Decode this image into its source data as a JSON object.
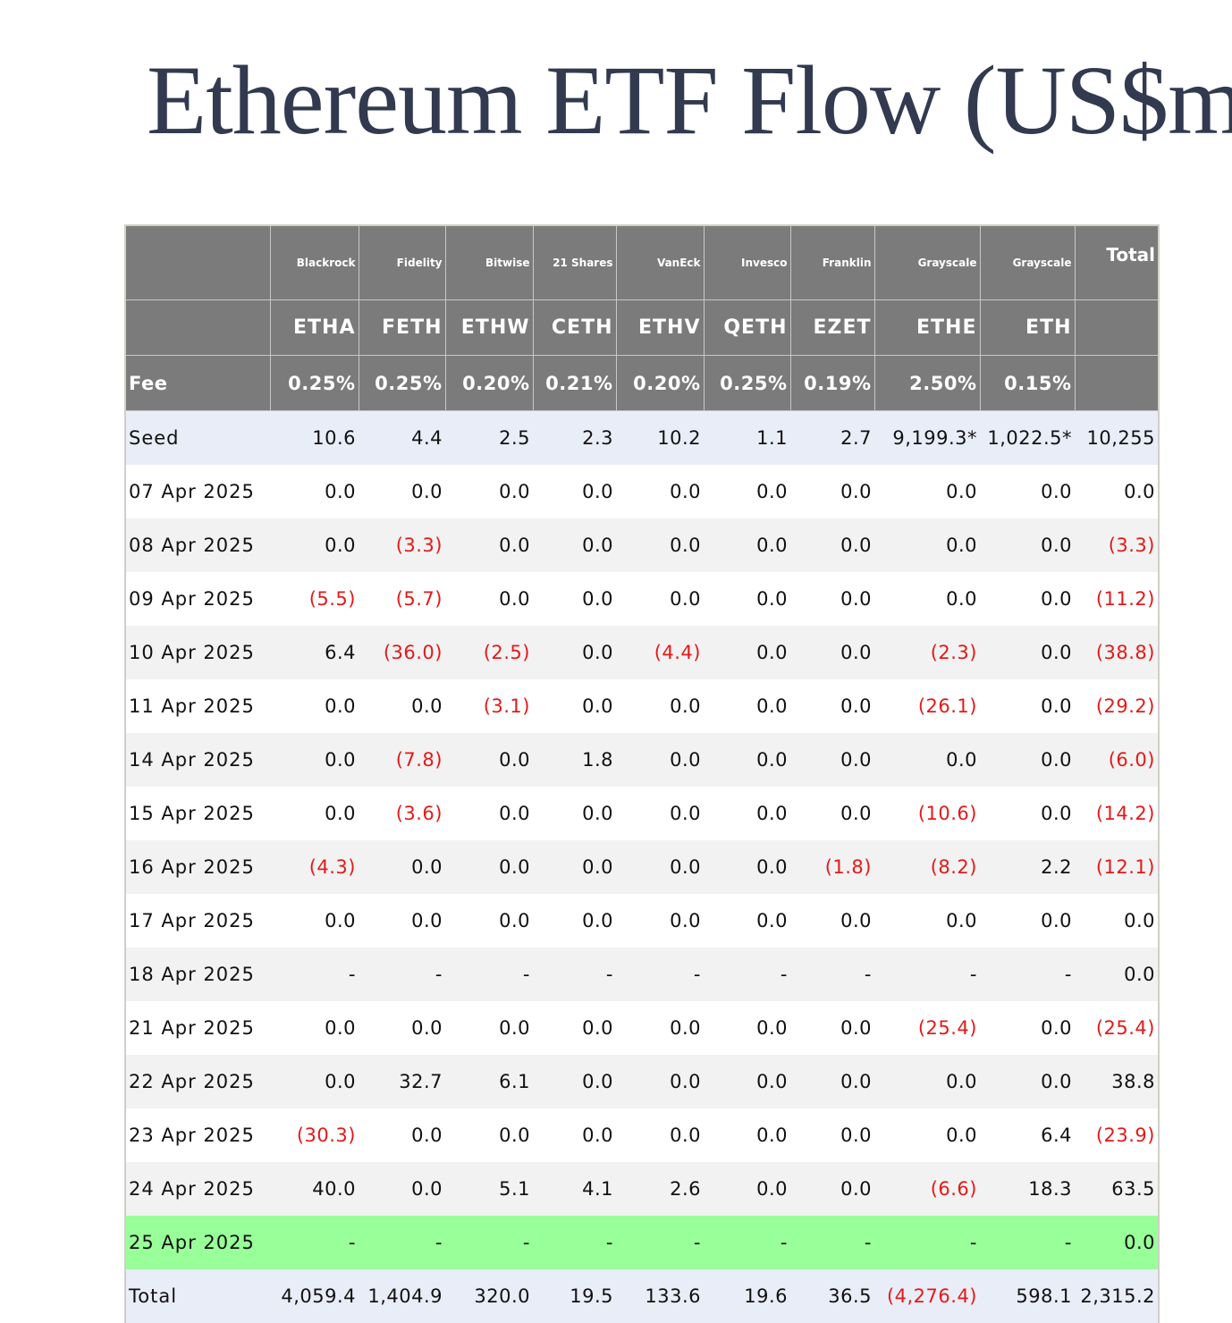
{
  "title": "Ethereum ETF Flow (US$m)",
  "header": {
    "issuers": [
      "Blackrock",
      "Fidelity",
      "Bitwise",
      "21 Shares",
      "VanEck",
      "Invesco",
      "Franklin",
      "Grayscale",
      "Grayscale"
    ],
    "total_label": "Total",
    "tickers": [
      "ETHA",
      "FETH",
      "ETHW",
      "CETH",
      "ETHV",
      "QETH",
      "EZET",
      "ETHE",
      "ETH"
    ],
    "fee_label": "Fee",
    "fees": [
      "0.25%",
      "0.25%",
      "0.20%",
      "0.21%",
      "0.20%",
      "0.25%",
      "0.19%",
      "2.50%",
      "0.15%"
    ]
  },
  "rows": [
    {
      "label": "Seed",
      "style": "seed",
      "values": [
        "10.6",
        "4.4",
        "2.5",
        "2.3",
        "10.2",
        "1.1",
        "2.7",
        "9,199.3*",
        "1,022.5*",
        "10,255"
      ]
    },
    {
      "label": "07 Apr 2025",
      "style": "plain",
      "values": [
        "0.0",
        "0.0",
        "0.0",
        "0.0",
        "0.0",
        "0.0",
        "0.0",
        "0.0",
        "0.0",
        "0.0"
      ]
    },
    {
      "label": "08 Apr 2025",
      "style": "alt",
      "values": [
        "0.0",
        "(3.3)",
        "0.0",
        "0.0",
        "0.0",
        "0.0",
        "0.0",
        "0.0",
        "0.0",
        "(3.3)"
      ]
    },
    {
      "label": "09 Apr 2025",
      "style": "plain",
      "values": [
        "(5.5)",
        "(5.7)",
        "0.0",
        "0.0",
        "0.0",
        "0.0",
        "0.0",
        "0.0",
        "0.0",
        "(11.2)"
      ]
    },
    {
      "label": "10 Apr 2025",
      "style": "alt",
      "values": [
        "6.4",
        "(36.0)",
        "(2.5)",
        "0.0",
        "(4.4)",
        "0.0",
        "0.0",
        "(2.3)",
        "0.0",
        "(38.8)"
      ]
    },
    {
      "label": "11 Apr 2025",
      "style": "plain",
      "values": [
        "0.0",
        "0.0",
        "(3.1)",
        "0.0",
        "0.0",
        "0.0",
        "0.0",
        "(26.1)",
        "0.0",
        "(29.2)"
      ]
    },
    {
      "label": "14 Apr 2025",
      "style": "alt",
      "values": [
        "0.0",
        "(7.8)",
        "0.0",
        "1.8",
        "0.0",
        "0.0",
        "0.0",
        "0.0",
        "0.0",
        "(6.0)"
      ]
    },
    {
      "label": "15 Apr 2025",
      "style": "plain",
      "values": [
        "0.0",
        "(3.6)",
        "0.0",
        "0.0",
        "0.0",
        "0.0",
        "0.0",
        "(10.6)",
        "0.0",
        "(14.2)"
      ]
    },
    {
      "label": "16 Apr 2025",
      "style": "alt",
      "values": [
        "(4.3)",
        "0.0",
        "0.0",
        "0.0",
        "0.0",
        "0.0",
        "(1.8)",
        "(8.2)",
        "2.2",
        "(12.1)"
      ]
    },
    {
      "label": "17 Apr 2025",
      "style": "plain",
      "values": [
        "0.0",
        "0.0",
        "0.0",
        "0.0",
        "0.0",
        "0.0",
        "0.0",
        "0.0",
        "0.0",
        "0.0"
      ]
    },
    {
      "label": "18 Apr 2025",
      "style": "alt",
      "values": [
        "-",
        "-",
        "-",
        "-",
        "-",
        "-",
        "-",
        "-",
        "-",
        "0.0"
      ]
    },
    {
      "label": "21 Apr 2025",
      "style": "plain",
      "values": [
        "0.0",
        "0.0",
        "0.0",
        "0.0",
        "0.0",
        "0.0",
        "0.0",
        "(25.4)",
        "0.0",
        "(25.4)"
      ]
    },
    {
      "label": "22 Apr 2025",
      "style": "alt",
      "values": [
        "0.0",
        "32.7",
        "6.1",
        "0.0",
        "0.0",
        "0.0",
        "0.0",
        "0.0",
        "0.0",
        "38.8"
      ]
    },
    {
      "label": "23 Apr 2025",
      "style": "plain",
      "values": [
        "(30.3)",
        "0.0",
        "0.0",
        "0.0",
        "0.0",
        "0.0",
        "0.0",
        "0.0",
        "6.4",
        "(23.9)"
      ]
    },
    {
      "label": "24 Apr 2025",
      "style": "alt",
      "values": [
        "40.0",
        "0.0",
        "5.1",
        "4.1",
        "2.6",
        "0.0",
        "0.0",
        "(6.6)",
        "18.3",
        "63.5"
      ]
    },
    {
      "label": "25 Apr 2025",
      "style": "highlight",
      "values": [
        "-",
        "-",
        "-",
        "-",
        "-",
        "-",
        "-",
        "-",
        "-",
        "0.0"
      ]
    },
    {
      "label": "Total",
      "style": "total",
      "values": [
        "4,059.4",
        "1,404.9",
        "320.0",
        "19.5",
        "133.6",
        "19.6",
        "36.5",
        "(4,276.4)",
        "598.1",
        "2,315.2"
      ]
    }
  ],
  "colors": {
    "title": "#323a50",
    "header_bg": "#7b7b7b",
    "negative": "#e41919",
    "seed_bg": "#e9edf7",
    "alt_bg": "#f2f2f2",
    "highlight_bg": "#99ff99"
  }
}
